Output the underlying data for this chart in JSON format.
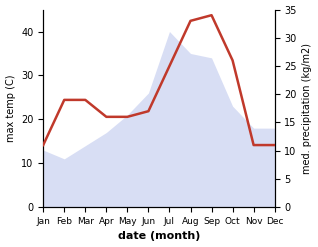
{
  "months": [
    "Jan",
    "Feb",
    "Mar",
    "Apr",
    "May",
    "Jun",
    "Jul",
    "Aug",
    "Sep",
    "Oct",
    "Nov",
    "Dec"
  ],
  "temp": [
    13,
    11,
    14,
    17,
    21,
    26,
    40,
    35,
    34,
    23,
    18,
    18
  ],
  "precip": [
    11,
    19,
    19,
    16,
    16,
    17,
    25,
    33,
    34,
    26,
    11,
    11
  ],
  "temp_fill_color": "#c8d0f0",
  "temp_fill_alpha": 0.7,
  "precip_line_color": "#c0392b",
  "temp_ylim": [
    0,
    45
  ],
  "precip_ylim": [
    0,
    35
  ],
  "temp_yticks": [
    0,
    10,
    20,
    30,
    40
  ],
  "precip_yticks": [
    0,
    5,
    10,
    15,
    20,
    25,
    30,
    35
  ],
  "ylabel_left": "max temp (C)",
  "ylabel_right": "med. precipitation (kg/m2)",
  "xlabel": "date (month)"
}
